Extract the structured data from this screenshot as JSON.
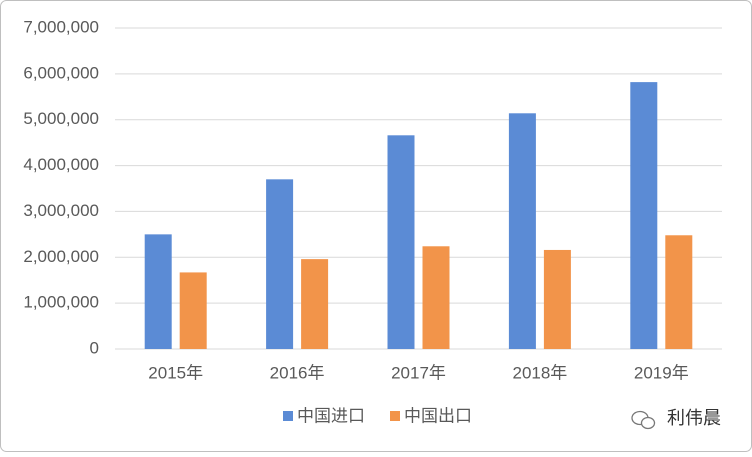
{
  "chart_data": {
    "type": "bar",
    "categories": [
      "2015年",
      "2016年",
      "2017年",
      "2018年",
      "2019年"
    ],
    "series": [
      {
        "name": "中国进口",
        "color": "#5b8bd5",
        "values": [
          2500000,
          3700000,
          4660000,
          5140000,
          5820000
        ]
      },
      {
        "name": "中国出口",
        "color": "#f2944a",
        "values": [
          1670000,
          1960000,
          2240000,
          2160000,
          2480000
        ]
      }
    ],
    "ylim": [
      0,
      7000000
    ],
    "yticks": [
      0,
      {
        "value": 1000000,
        "label": "1,000,000"
      },
      {
        "value": 2000000,
        "label": "2,000,000"
      },
      {
        "value": 3000000,
        "label": "3,000,000"
      },
      {
        "value": 4000000,
        "label": "4,000,000"
      },
      {
        "value": 5000000,
        "label": "5,000,000"
      },
      {
        "value": 6000000,
        "label": "6,000,000"
      },
      {
        "value": 7000000,
        "label": "7,000,000"
      }
    ],
    "grid": true,
    "legend": "bottom",
    "watermark": "利伟晨"
  }
}
